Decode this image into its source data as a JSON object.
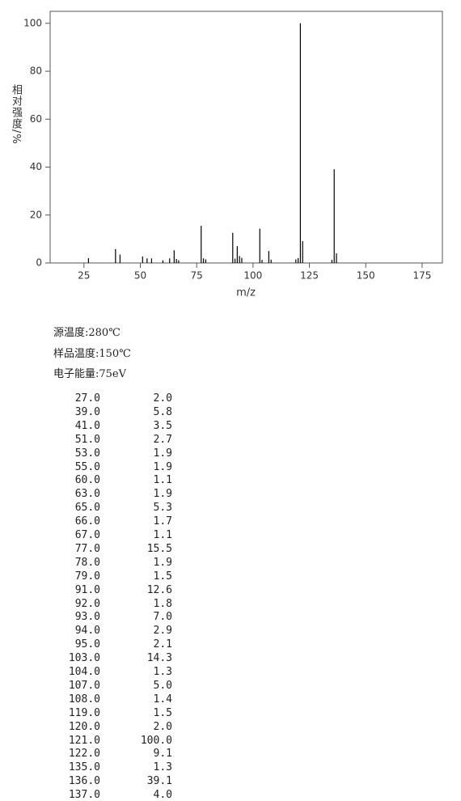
{
  "chart_data": {
    "type": "bar",
    "xlabel": "m/z",
    "ylabel": "相对强度/%",
    "color": "#000000",
    "xlim": [
      10,
      184
    ],
    "xticks": [
      25,
      50,
      75,
      100,
      125,
      150,
      175
    ],
    "ylim": [
      0,
      105
    ],
    "yticks": [
      0,
      20,
      40,
      60,
      80,
      100
    ],
    "x": [
      27,
      39,
      41,
      51,
      53,
      55,
      60,
      63,
      65,
      66,
      67,
      77,
      78,
      79,
      91,
      92,
      93,
      94,
      95,
      103,
      104,
      107,
      108,
      119,
      120,
      121,
      122,
      135,
      136,
      137
    ],
    "values": [
      2.0,
      5.8,
      3.5,
      2.7,
      1.9,
      1.9,
      1.1,
      1.9,
      5.3,
      1.7,
      1.1,
      15.5,
      1.9,
      1.5,
      12.6,
      1.8,
      7.0,
      2.9,
      2.1,
      14.3,
      1.3,
      5.0,
      1.4,
      1.5,
      2.0,
      100.0,
      9.1,
      1.3,
      39.1,
      4.0
    ]
  },
  "info": [
    "源温度:280℃",
    "样品温度:150℃",
    "电子能量:75eV"
  ],
  "table": {
    "rows": [
      [
        "27.0",
        "2.0"
      ],
      [
        "39.0",
        "5.8"
      ],
      [
        "41.0",
        "3.5"
      ],
      [
        "51.0",
        "2.7"
      ],
      [
        "53.0",
        "1.9"
      ],
      [
        "55.0",
        "1.9"
      ],
      [
        "60.0",
        "1.1"
      ],
      [
        "63.0",
        "1.9"
      ],
      [
        "65.0",
        "5.3"
      ],
      [
        "66.0",
        "1.7"
      ],
      [
        "67.0",
        "1.1"
      ],
      [
        "77.0",
        "15.5"
      ],
      [
        "78.0",
        "1.9"
      ],
      [
        "79.0",
        "1.5"
      ],
      [
        "91.0",
        "12.6"
      ],
      [
        "92.0",
        "1.8"
      ],
      [
        "93.0",
        "7.0"
      ],
      [
        "94.0",
        "2.9"
      ],
      [
        "95.0",
        "2.1"
      ],
      [
        "103.0",
        "14.3"
      ],
      [
        "104.0",
        "1.3"
      ],
      [
        "107.0",
        "5.0"
      ],
      [
        "108.0",
        "1.4"
      ],
      [
        "119.0",
        "1.5"
      ],
      [
        "120.0",
        "2.0"
      ],
      [
        "121.0",
        "100.0"
      ],
      [
        "122.0",
        "9.1"
      ],
      [
        "135.0",
        "1.3"
      ],
      [
        "136.0",
        "39.1"
      ],
      [
        "137.0",
        "4.0"
      ]
    ]
  }
}
